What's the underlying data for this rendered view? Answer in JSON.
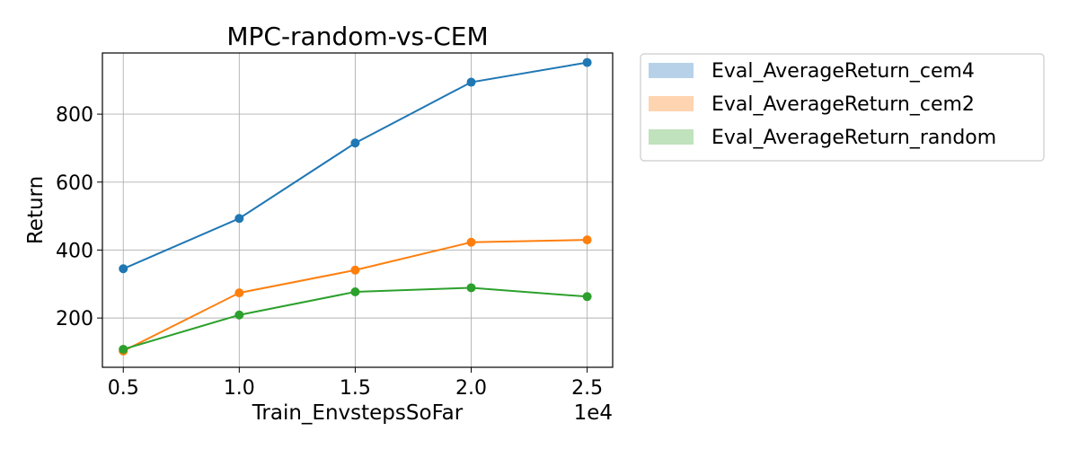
{
  "chart_data": {
    "type": "line",
    "title": "MPC-random-vs-CEM",
    "xlabel": "Train_EnvstepsSoFar",
    "ylabel": "Return",
    "x_offset_label": "1e4",
    "x": [
      0.5,
      1.0,
      1.5,
      2.0,
      2.5
    ],
    "x_tick_labels": [
      "0.5",
      "1.0",
      "1.5",
      "2.0",
      "2.5"
    ],
    "y_ticks": [
      200,
      400,
      600,
      800
    ],
    "y_tick_labels": [
      "200",
      "400",
      "600",
      "800"
    ],
    "xlim": [
      0.41,
      2.61
    ],
    "ylim": [
      55,
      980
    ],
    "grid": true,
    "legend_position": "outside-upper-right",
    "series": [
      {
        "name": "Eval_AverageReturn_cem4",
        "color": "#1f77b4",
        "legend_color": "#b7d2e8",
        "values": [
          345,
          493,
          715,
          894,
          952
        ]
      },
      {
        "name": "Eval_AverageReturn_cem2",
        "color": "#ff7f0e",
        "legend_color": "#ffd4b0",
        "values": [
          103,
          274,
          341,
          423,
          430
        ]
      },
      {
        "name": "Eval_AverageReturn_random",
        "color": "#2ca02c",
        "legend_color": "#c0e2bc",
        "values": [
          108,
          209,
          277,
          289,
          263
        ]
      }
    ]
  }
}
